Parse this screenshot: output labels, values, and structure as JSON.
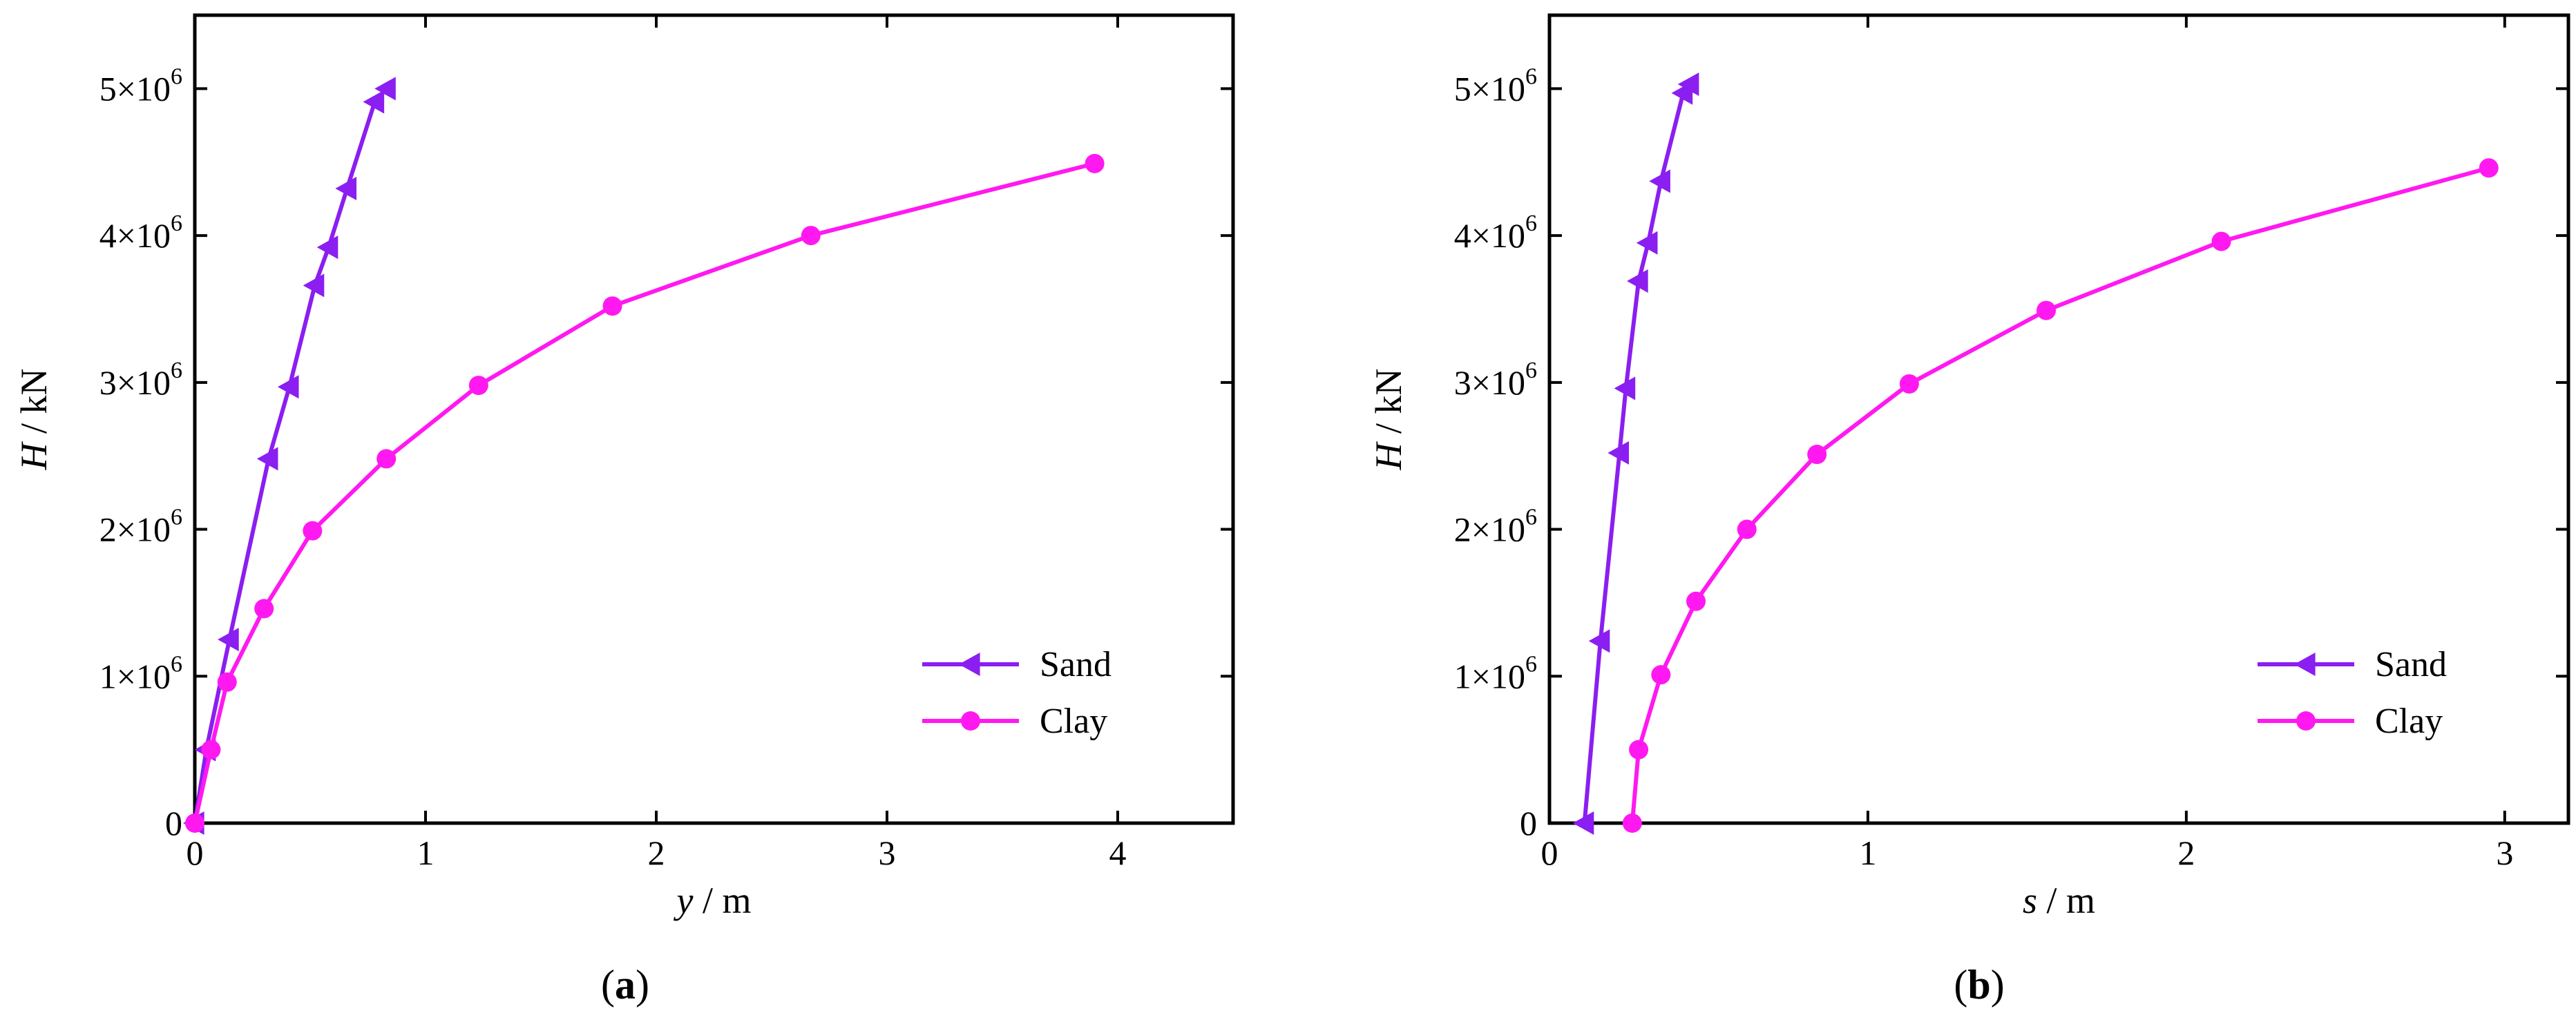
{
  "figure": {
    "charts": [
      {
        "id": "a",
        "caption_letter": "a",
        "ylabel_symbol": "H",
        "ylabel_unit": "kN",
        "xlabel_symbol": "y",
        "xlabel_unit": "m"
      },
      {
        "id": "b",
        "caption_letter": "b",
        "ylabel_symbol": "H",
        "ylabel_unit": "kN",
        "xlabel_symbol": "s",
        "xlabel_unit": "m"
      }
    ]
  },
  "chart_data": [
    {
      "type": "line",
      "title": "",
      "xlabel": "y / m",
      "ylabel": "H / kN",
      "xlim": [
        0,
        4.5
      ],
      "ylim": [
        0,
        5500000
      ],
      "xticks": [
        0,
        1,
        2,
        3,
        4
      ],
      "xtick_labels": [
        "0",
        "1",
        "2",
        "3",
        "4"
      ],
      "yticks": [
        0,
        1000000,
        2000000,
        3000000,
        4000000,
        5000000
      ],
      "ytick_labels": [
        {
          "mant": "0",
          "exp": ""
        },
        {
          "mant": "1×10",
          "exp": "6"
        },
        {
          "mant": "2×10",
          "exp": "6"
        },
        {
          "mant": "3×10",
          "exp": "6"
        },
        {
          "mant": "4×10",
          "exp": "6"
        },
        {
          "mant": "5×10",
          "exp": "6"
        }
      ],
      "grid": false,
      "legend_position": "bottom-right",
      "series": [
        {
          "name": "Sand",
          "color": "#8b1ef0",
          "marker": "left-triangle",
          "x": [
            0,
            0.05,
            0.15,
            0.32,
            0.41,
            0.52,
            0.58,
            0.66,
            0.78,
            0.83
          ],
          "y": [
            0,
            500000,
            1250000,
            2480000,
            2970000,
            3660000,
            3920000,
            4320000,
            4910000,
            5000000
          ]
        },
        {
          "name": "Clay",
          "color": "#ff19f0",
          "marker": "circle",
          "x": [
            0,
            0.07,
            0.14,
            0.3,
            0.51,
            0.83,
            1.23,
            1.81,
            2.67,
            3.9
          ],
          "y": [
            0,
            500000,
            960000,
            1460000,
            1990000,
            2480000,
            2980000,
            3520000,
            4000000,
            4490000
          ]
        }
      ]
    },
    {
      "type": "line",
      "title": "",
      "xlabel": "s / m",
      "ylabel": "H / kN",
      "xlim": [
        0,
        3.2
      ],
      "ylim": [
        0,
        5500000
      ],
      "xticks": [
        0,
        1,
        2,
        3
      ],
      "xtick_labels": [
        "0",
        "1",
        "2",
        "3"
      ],
      "yticks": [
        0,
        1000000,
        2000000,
        3000000,
        4000000,
        5000000
      ],
      "ytick_labels": [
        {
          "mant": "0",
          "exp": ""
        },
        {
          "mant": "1×10",
          "exp": "6"
        },
        {
          "mant": "2×10",
          "exp": "6"
        },
        {
          "mant": "3×10",
          "exp": "6"
        },
        {
          "mant": "4×10",
          "exp": "6"
        },
        {
          "mant": "5×10",
          "exp": "6"
        }
      ],
      "grid": false,
      "legend_position": "bottom-right",
      "series": [
        {
          "name": "Sand",
          "color": "#8b1ef0",
          "marker": "left-triangle",
          "x": [
            0.11,
            0.16,
            0.22,
            0.24,
            0.28,
            0.31,
            0.35,
            0.42,
            0.44
          ],
          "y": [
            0,
            1240000,
            2520000,
            2960000,
            3690000,
            3950000,
            4370000,
            4970000,
            5030000
          ]
        },
        {
          "name": "Clay",
          "color": "#ff19f0",
          "marker": "circle",
          "x": [
            0.26,
            0.28,
            0.35,
            0.46,
            0.62,
            0.84,
            1.13,
            1.56,
            2.11,
            2.95
          ],
          "y": [
            0,
            500000,
            1010000,
            1510000,
            2000000,
            2510000,
            2990000,
            3490000,
            3960000,
            4460000
          ]
        }
      ]
    }
  ]
}
